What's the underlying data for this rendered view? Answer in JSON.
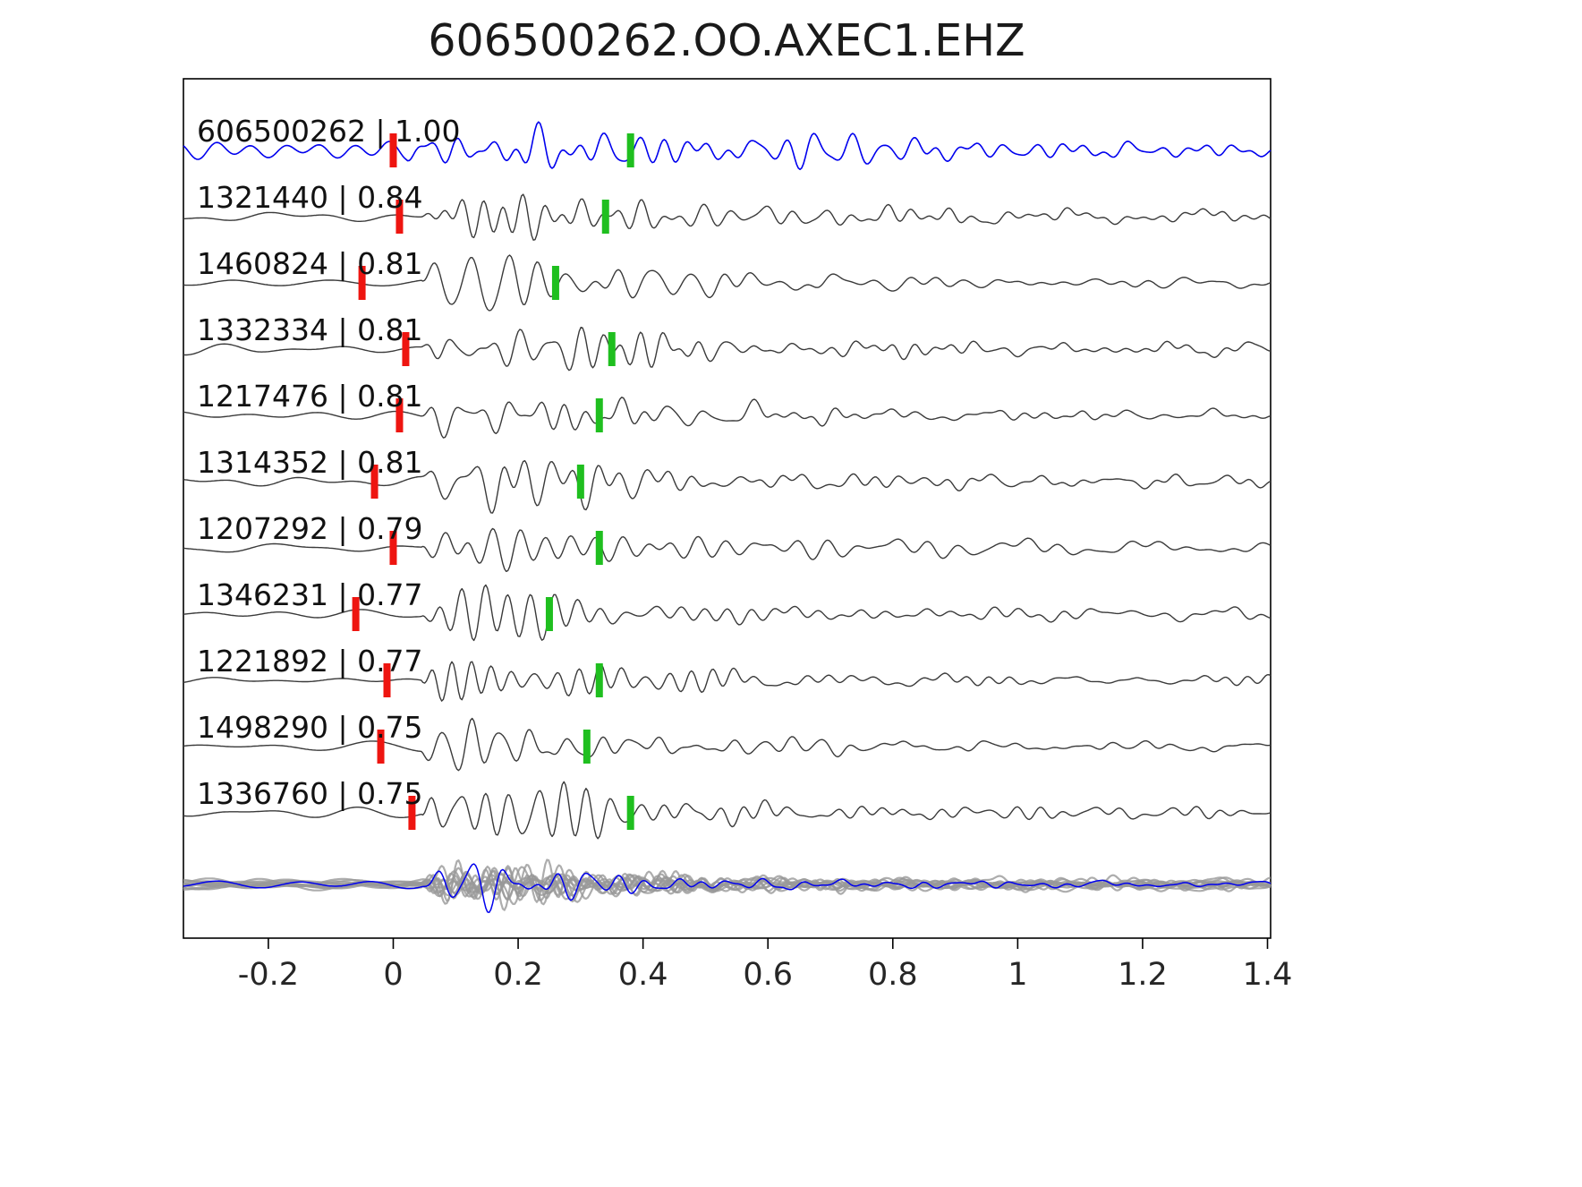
{
  "page": {
    "background": "#ffffff"
  },
  "chart_data": {
    "type": "line",
    "title": "606500262.OO.AXEC1.EHZ",
    "xlabel": "",
    "ylabel": "",
    "grid": false,
    "legend": null,
    "xlim": [
      -0.336,
      1.405
    ],
    "xticks": [
      -0.2,
      0,
      0.2,
      0.4,
      0.6,
      0.8,
      1,
      1.2,
      1.4
    ],
    "xtick_labels": [
      "-0.2",
      "0",
      "0.2",
      "0.4",
      "0.6",
      "0.8",
      "1",
      "1.2",
      "1.4"
    ],
    "colors": {
      "template_trace": "#0000ee",
      "detection_trace": "#3a3a3a",
      "stack_trace": "#999999",
      "pick_red": "#ee1510",
      "pick_green": "#1fbf1f",
      "axis": "#000000"
    },
    "traces": [
      {
        "id": "606500262",
        "corr": "1.00",
        "label": "606500262 | 1.00",
        "color_role": "template",
        "pick_red_x": 0.0,
        "pick_green_x": 0.38,
        "seed": 1
      },
      {
        "id": "1321440",
        "corr": "0.84",
        "label": "1321440 | 0.84",
        "color_role": "trace",
        "pick_red_x": 0.01,
        "pick_green_x": 0.34,
        "seed": 2
      },
      {
        "id": "1460824",
        "corr": "0.81",
        "label": "1460824 | 0.81",
        "color_role": "trace",
        "pick_red_x": -0.05,
        "pick_green_x": 0.26,
        "seed": 3
      },
      {
        "id": "1332334",
        "corr": "0.81",
        "label": "1332334 | 0.81",
        "color_role": "trace",
        "pick_red_x": 0.02,
        "pick_green_x": 0.35,
        "seed": 4
      },
      {
        "id": "1217476",
        "corr": "0.81",
        "label": "1217476 | 0.81",
        "color_role": "trace",
        "pick_red_x": 0.01,
        "pick_green_x": 0.33,
        "seed": 5
      },
      {
        "id": "1314352",
        "corr": "0.81",
        "label": "1314352 | 0.81",
        "color_role": "trace",
        "pick_red_x": -0.03,
        "pick_green_x": 0.3,
        "seed": 6
      },
      {
        "id": "1207292",
        "corr": "0.79",
        "label": "1207292 | 0.79",
        "color_role": "trace",
        "pick_red_x": 0.0,
        "pick_green_x": 0.33,
        "seed": 7
      },
      {
        "id": "1346231",
        "corr": "0.77",
        "label": "1346231 | 0.77",
        "color_role": "trace",
        "pick_red_x": -0.06,
        "pick_green_x": 0.25,
        "seed": 8
      },
      {
        "id": "1221892",
        "corr": "0.77",
        "label": "1221892 | 0.77",
        "color_role": "trace",
        "pick_red_x": -0.01,
        "pick_green_x": 0.33,
        "seed": 9
      },
      {
        "id": "1498290",
        "corr": "0.75",
        "label": "1498290 | 0.75",
        "color_role": "trace",
        "pick_red_x": -0.02,
        "pick_green_x": 0.31,
        "seed": 10
      },
      {
        "id": "1336760",
        "corr": "0.75",
        "label": "1336760 | 0.75",
        "color_role": "trace",
        "pick_red_x": 0.03,
        "pick_green_x": 0.38,
        "seed": 11
      }
    ],
    "stack": {
      "description": "overlay stack of all aligned detection traces (gray) with template (blue)",
      "n_members": 12,
      "member_seed_start": 21,
      "overlay_seed": 40
    }
  }
}
